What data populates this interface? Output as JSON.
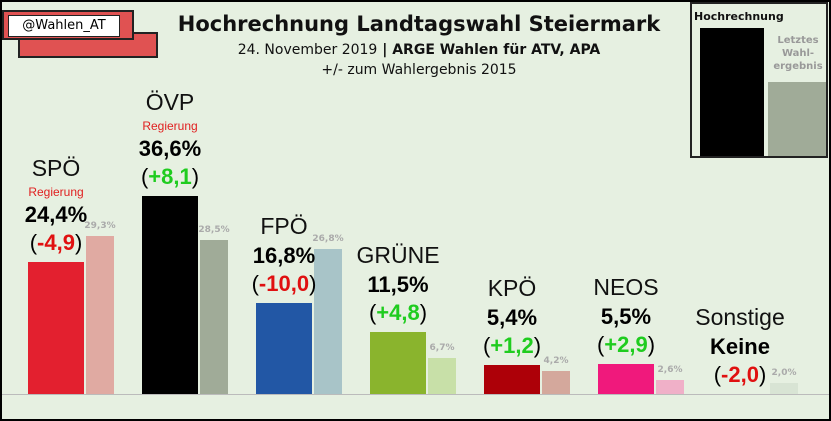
{
  "handle": "@Wahlen_AT",
  "title": "Hochrechnung Landtagswahl Steiermark",
  "subtitle_date": "24. November 2019",
  "subtitle_sep": " | ",
  "subtitle_source": "ARGE Wahlen für ATV, APA",
  "subtitle2": "+/- zum Wahlergebnis 2015",
  "legend": {
    "current": "Hochrechnung",
    "previous": "Letztes\nWahl-\nergebnis"
  },
  "chart_data": {
    "type": "bar",
    "title": "Hochrechnung Landtagswahl Steiermark",
    "categories": [
      "SPÖ",
      "ÖVP",
      "FPÖ",
      "GRÜNE",
      "KPÖ",
      "NEOS",
      "Sonstige"
    ],
    "series": [
      {
        "name": "Hochrechnung",
        "values": [
          24.4,
          36.6,
          16.8,
          11.5,
          5.4,
          5.5,
          0
        ]
      },
      {
        "name": "Letztes Wahlergebnis",
        "values": [
          29.3,
          28.5,
          26.8,
          6.7,
          4.2,
          2.6,
          2.0
        ]
      }
    ],
    "current_labels": [
      "24,4%",
      "36,6%",
      "16,8%",
      "11,5%",
      "5,4%",
      "5,5%",
      "Keine"
    ],
    "change_labels": [
      "-4,9",
      "+8,1",
      "-10,0",
      "+4,8",
      "+1,2",
      "+2,9",
      "-2,0"
    ],
    "previous_labels": [
      "29,3%",
      "28,5%",
      "26,8%",
      "6,7%",
      "4,2%",
      "2,6%",
      "2,0%"
    ],
    "governing_label": "Regierung",
    "governing": [
      true,
      true,
      false,
      false,
      false,
      false,
      false
    ],
    "colors_current": [
      "#e3202f",
      "#000000",
      "#2257a5",
      "#8ab42d",
      "#ad0008",
      "#f0197c",
      "#e6f0e1"
    ],
    "colors_previous": [
      "#e0aaa2",
      "#a0ab98",
      "#a8c4c8",
      "#c8e0a8",
      "#d4a89c",
      "#f0b0c8",
      "#d8e4d4"
    ],
    "ylim": [
      0,
      40
    ],
    "legend": "top-right"
  }
}
